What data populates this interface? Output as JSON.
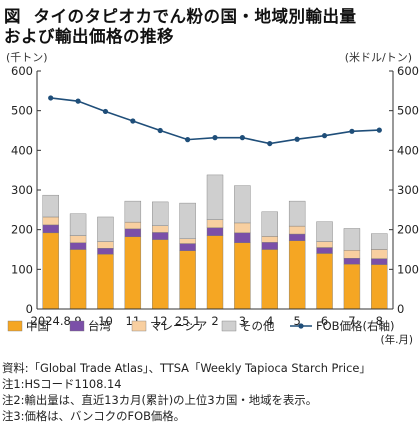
{
  "title_prefix": "図",
  "title_line1": "タイのタピオカでん粉の国・地域別輸出量",
  "title_line2": "および輸出価格の推移",
  "chart_data": {
    "type": "bar",
    "stacked": true,
    "categories": [
      "2024.8",
      "9",
      "10",
      "11",
      "12",
      "25.1",
      "2",
      "3",
      "4",
      "5",
      "6",
      "7",
      "8"
    ],
    "x_unit_label": "(年.月)",
    "y_left": {
      "label": "(千トン)",
      "ylim": [
        0,
        600
      ],
      "ticks": [
        0,
        100,
        200,
        300,
        400,
        500,
        600
      ]
    },
    "y_right": {
      "label": "(米ドル/トン)",
      "ylim": [
        0,
        600
      ],
      "ticks": [
        0,
        100,
        200,
        300,
        400,
        500,
        600
      ]
    },
    "grid": false,
    "legend_position": "bottom",
    "series": [
      {
        "name": "中国",
        "kind": "bar",
        "axis": "left",
        "color": "#f5a623",
        "values": [
          192,
          150,
          138,
          182,
          175,
          147,
          185,
          167,
          150,
          172,
          140,
          113,
          112
        ]
      },
      {
        "name": "台湾",
        "kind": "bar",
        "axis": "left",
        "color": "#7b4fa8",
        "values": [
          20,
          17,
          15,
          20,
          18,
          18,
          20,
          25,
          18,
          17,
          15,
          15,
          15
        ]
      },
      {
        "name": "マレーシア",
        "kind": "bar",
        "axis": "left",
        "color": "#f8cfa0",
        "values": [
          20,
          18,
          17,
          17,
          17,
          12,
          20,
          25,
          15,
          20,
          15,
          20,
          23
        ]
      },
      {
        "name": "その他",
        "kind": "bar",
        "axis": "left",
        "color": "#cfcfcf",
        "values": [
          55,
          55,
          62,
          53,
          60,
          90,
          113,
          94,
          62,
          63,
          50,
          55,
          40
        ]
      },
      {
        "name": "FOB価格(右軸)",
        "kind": "line",
        "axis": "right",
        "color": "#1f4e79",
        "values": [
          532,
          524,
          498,
          474,
          450,
          427,
          432,
          432,
          417,
          428,
          437,
          448,
          451
        ]
      }
    ]
  },
  "colors": {
    "axis": "#333333",
    "tick_text": "#222222"
  },
  "notes": [
    "資料:「Global Trade Atlas」、TTSA「Weekly Tapioca Starch Price」",
    "注1:HSコード1108.14",
    "注2:輸出量は、直近13カ月(累計)の上位3カ国・地域を表示。",
    "注3:価格は、バンコクのFOB価格。"
  ]
}
